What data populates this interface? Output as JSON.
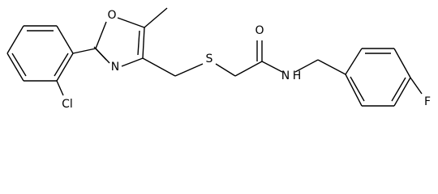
{
  "atoms": {
    "oxazole_o": "O",
    "oxazole_n": "N",
    "sulfur": "S",
    "carbonyl_o": "O",
    "amide_n": "N",
    "amide_h": "H",
    "chlorine": "Cl",
    "fluorine": "F"
  }
}
